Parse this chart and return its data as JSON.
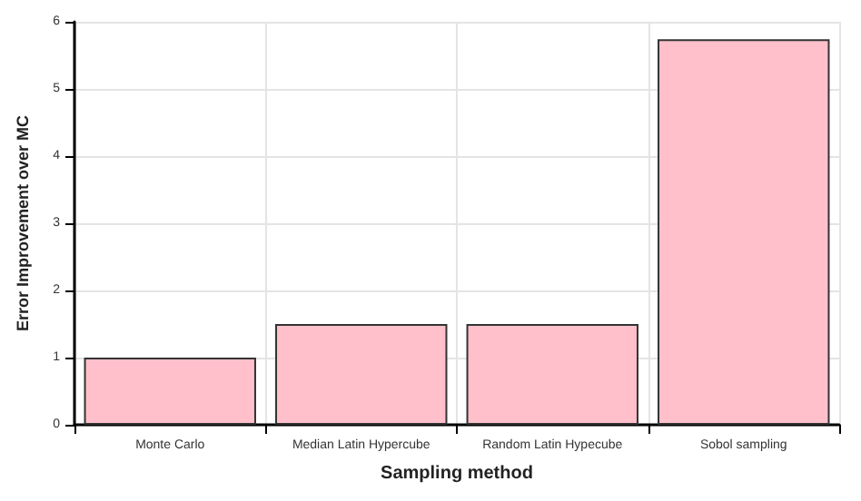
{
  "chart_data": {
    "type": "bar",
    "xlabel": "Sampling method",
    "ylabel": "Error Improvement over MC",
    "categories": [
      "Monte Carlo",
      "Median Latin Hypercube",
      "Random Latin Hypecube",
      "Sobol sampling"
    ],
    "values": [
      1,
      1.5,
      1.5,
      5.74
    ],
    "color": "#ffc0cb",
    "ylim": [
      0,
      6
    ],
    "yticks": [
      0,
      1,
      2,
      3,
      4,
      5,
      6
    ],
    "grid": true
  }
}
